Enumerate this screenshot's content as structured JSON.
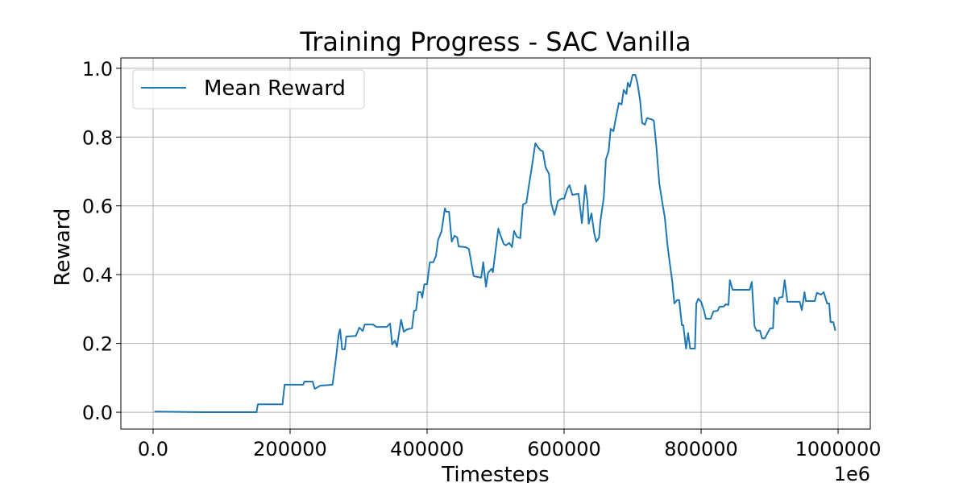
{
  "chart_data": {
    "type": "line",
    "title": "Training Progress - SAC Vanilla",
    "x_label": "Timesteps",
    "y_label": "Reward",
    "x_offset_label": "1e6",
    "grid": true,
    "legend_position": "upper left",
    "x": [
      2000,
      70000,
      151000,
      153000,
      189000,
      192000,
      219000,
      221000,
      233000,
      236000,
      244000,
      262000,
      267000,
      271000,
      273000,
      276000,
      280000,
      282000,
      296000,
      301000,
      306000,
      309000,
      321000,
      326000,
      341000,
      346000,
      349000,
      353000,
      356000,
      362000,
      366000,
      371000,
      378000,
      381000,
      384000,
      387000,
      391000,
      393000,
      396000,
      400000,
      404000,
      409000,
      413000,
      416000,
      421000,
      426000,
      428000,
      432000,
      436000,
      440000,
      444000,
      446000,
      456000,
      461000,
      468000,
      479000,
      482000,
      486000,
      489000,
      494000,
      496000,
      504000,
      507000,
      512000,
      515000,
      520000,
      524000,
      527000,
      531000,
      536000,
      540000,
      545000,
      548000,
      553000,
      558000,
      562000,
      566000,
      569000,
      573000,
      578000,
      581000,
      586000,
      591000,
      596000,
      600000,
      605000,
      608000,
      612000,
      621000,
      626000,
      631000,
      634000,
      636000,
      640000,
      644000,
      647000,
      651000,
      653000,
      658000,
      661000,
      665000,
      668000,
      672000,
      676000,
      680000,
      684000,
      687000,
      691000,
      693000,
      696000,
      700000,
      704000,
      707000,
      711000,
      714000,
      718000,
      721000,
      727000,
      731000,
      735000,
      739000,
      744000,
      747000,
      751000,
      754000,
      758000,
      761000,
      765000,
      768000,
      772000,
      774000,
      778000,
      781000,
      784000,
      791000,
      793000,
      796000,
      800000,
      804000,
      807000,
      814000,
      818000,
      824000,
      827000,
      833000,
      836000,
      840000,
      842000,
      846000,
      871000,
      874000,
      878000,
      881000,
      886000,
      889000,
      893000,
      898000,
      901000,
      905000,
      907000,
      911000,
      914000,
      919000,
      922000,
      926000,
      936000,
      944000,
      947000,
      951000,
      953000,
      966000,
      969000,
      975000,
      979000,
      984000,
      987000,
      989000,
      993000,
      996000
    ],
    "series": [
      {
        "name": "Mean Reward",
        "color": "#1f77b4",
        "values": [
          0.002,
          0.0,
          0.0,
          0.023,
          0.023,
          0.08,
          0.08,
          0.089,
          0.089,
          0.068,
          0.077,
          0.08,
          0.157,
          0.227,
          0.241,
          0.183,
          0.183,
          0.22,
          0.222,
          0.246,
          0.236,
          0.255,
          0.255,
          0.248,
          0.248,
          0.258,
          0.197,
          0.208,
          0.19,
          0.269,
          0.234,
          0.241,
          0.244,
          0.295,
          0.297,
          0.349,
          0.349,
          0.333,
          0.372,
          0.372,
          0.436,
          0.436,
          0.454,
          0.501,
          0.525,
          0.593,
          0.583,
          0.583,
          0.496,
          0.513,
          0.508,
          0.482,
          0.48,
          0.475,
          0.396,
          0.391,
          0.436,
          0.365,
          0.405,
          0.417,
          0.407,
          0.534,
          0.515,
          0.489,
          0.485,
          0.492,
          0.48,
          0.527,
          0.51,
          0.506,
          0.604,
          0.609,
          0.651,
          0.714,
          0.782,
          0.77,
          0.761,
          0.759,
          0.712,
          0.693,
          0.609,
          0.574,
          0.614,
          0.621,
          0.621,
          0.651,
          0.66,
          0.632,
          0.635,
          0.55,
          0.66,
          0.614,
          0.548,
          0.578,
          0.52,
          0.496,
          0.508,
          0.555,
          0.625,
          0.735,
          0.759,
          0.824,
          0.817,
          0.859,
          0.899,
          0.895,
          0.937,
          0.925,
          0.958,
          0.946,
          0.981,
          0.981,
          0.958,
          0.906,
          0.841,
          0.836,
          0.855,
          0.852,
          0.848,
          0.766,
          0.665,
          0.602,
          0.567,
          0.485,
          0.438,
          0.379,
          0.316,
          0.326,
          0.326,
          0.253,
          0.253,
          0.185,
          0.23,
          0.185,
          0.185,
          0.316,
          0.33,
          0.321,
          0.297,
          0.272,
          0.272,
          0.293,
          0.295,
          0.307,
          0.307,
          0.314,
          0.312,
          0.384,
          0.356,
          0.356,
          0.379,
          0.25,
          0.237,
          0.237,
          0.215,
          0.215,
          0.234,
          0.244,
          0.244,
          0.333,
          0.314,
          0.333,
          0.335,
          0.384,
          0.321,
          0.321,
          0.321,
          0.297,
          0.349,
          0.323,
          0.323,
          0.347,
          0.342,
          0.349,
          0.316,
          0.316,
          0.262,
          0.262,
          0.237
        ]
      }
    ],
    "xlim": [
      -47000,
      1047000
    ],
    "xticks": [
      {
        "value": 0,
        "label": "0.0"
      },
      200000,
      400000,
      600000,
      800000,
      1000000
    ],
    "ylim": [
      -0.049,
      1.03
    ],
    "yticks": [
      {
        "value": 0,
        "label": "0.0"
      },
      0.2,
      0.4,
      0.6,
      0.8,
      {
        "value": 1,
        "label": "1.0"
      }
    ]
  }
}
